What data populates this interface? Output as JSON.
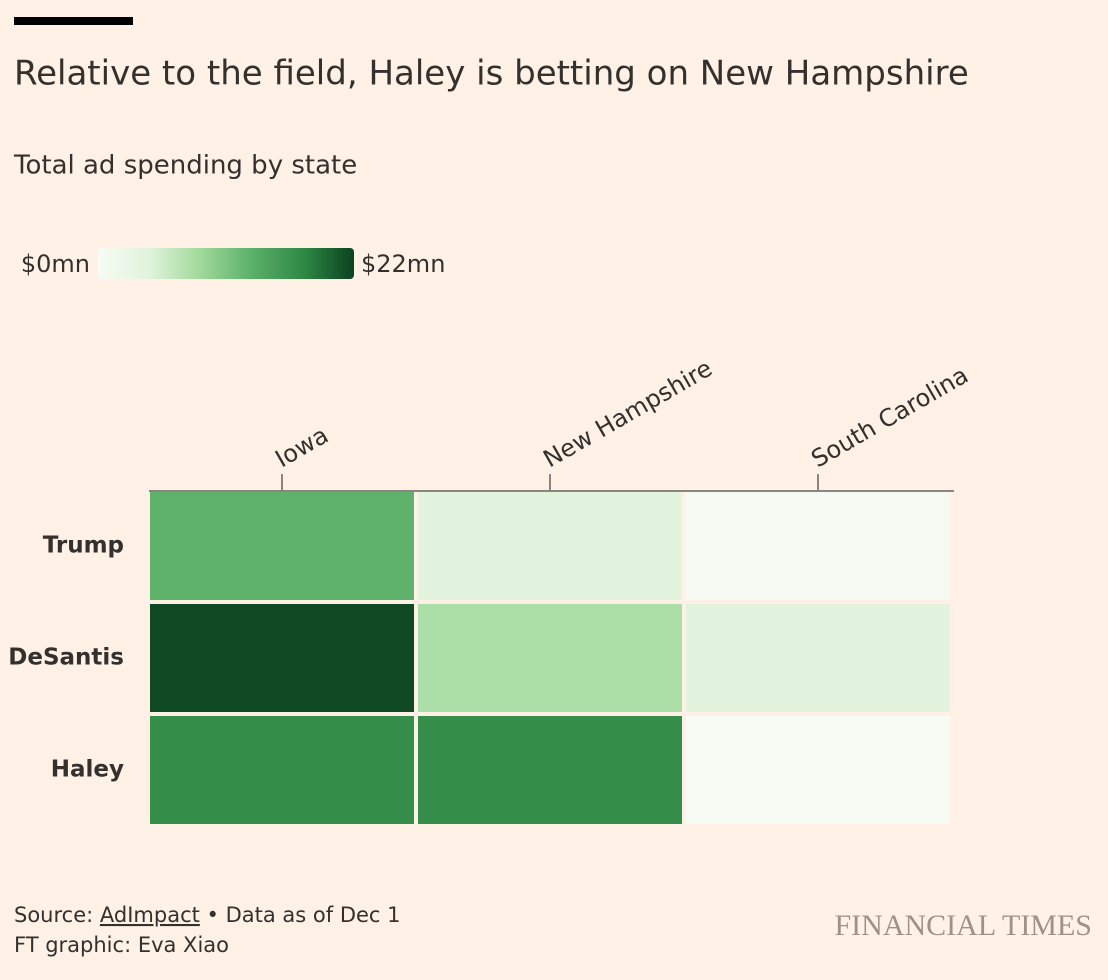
{
  "chart_data": {
    "type": "heatmap",
    "title": "Relative to the field, Haley is betting on New Hampshire",
    "subtitle": "Total ad spending by state",
    "categories": [
      "Iowa",
      "New Hampshire",
      "South Carolina"
    ],
    "series": [
      {
        "name": "Trump",
        "values": [
          13,
          4,
          0.3
        ]
      },
      {
        "name": "DeSantis",
        "values": [
          21.5,
          8,
          4
        ]
      },
      {
        "name": "Haley",
        "values": [
          17,
          17,
          0.2
        ]
      }
    ],
    "zlim": [
      0,
      22
    ],
    "colorbar_ticks": [
      {
        "value": 0,
        "label": "$0mn"
      },
      {
        "value": 22,
        "label": "$22mn"
      }
    ],
    "colorscale": [
      "#f7fcf5",
      "#e0f3db",
      "#a1d99b",
      "#5bb069",
      "#2f8a46",
      "#0b4220"
    ],
    "source": {
      "prefix": "Source: ",
      "link": "AdImpact",
      "suffix": " • Data as of Dec 1"
    },
    "credit": "FT graphic: Eva Xiao",
    "brand": "FINANCIAL TIMES"
  }
}
